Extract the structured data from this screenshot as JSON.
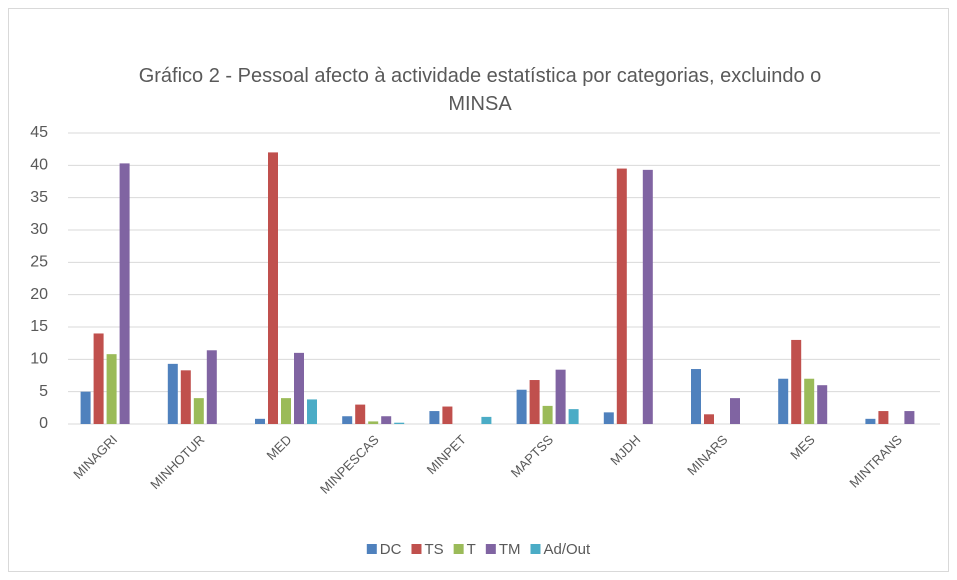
{
  "chart_data": {
    "type": "bar",
    "title": "Gráfico 2 - Pessoal afecto à actividade estatística por categorias, excluindo o MINSA",
    "categories": [
      "MINAGRI",
      "MINHOTUR",
      "MED",
      "MINPESCAS",
      "MINPET",
      "MAPTSS",
      "MJDH",
      "MINARS",
      "MES",
      "MINTRANS"
    ],
    "series": [
      {
        "name": "DC",
        "color": "#4f81bd",
        "values": [
          5,
          9.3,
          0.8,
          1.2,
          2,
          5.3,
          1.8,
          8.5,
          7,
          0.8
        ]
      },
      {
        "name": "TS",
        "color": "#c0504d",
        "values": [
          14,
          8.3,
          42,
          3,
          2.7,
          6.8,
          39.5,
          1.5,
          13,
          2
        ]
      },
      {
        "name": "T",
        "color": "#9bbb59",
        "values": [
          10.8,
          4,
          4,
          0.4,
          0,
          2.8,
          0,
          0,
          7,
          0
        ]
      },
      {
        "name": "TM",
        "color": "#8064a2",
        "values": [
          40.3,
          11.4,
          11,
          1.2,
          0,
          8.4,
          39.3,
          4,
          6,
          2
        ]
      },
      {
        "name": "Ad/Out",
        "color": "#4bacc6",
        "values": [
          0,
          0,
          3.8,
          0.2,
          1.1,
          2.3,
          0,
          0,
          0,
          0
        ]
      }
    ],
    "ylim": [
      0,
      45
    ],
    "yticks": [
      0,
      5,
      10,
      15,
      20,
      25,
      30,
      35,
      40,
      45
    ],
    "grid": true,
    "legend": "bottom"
  }
}
